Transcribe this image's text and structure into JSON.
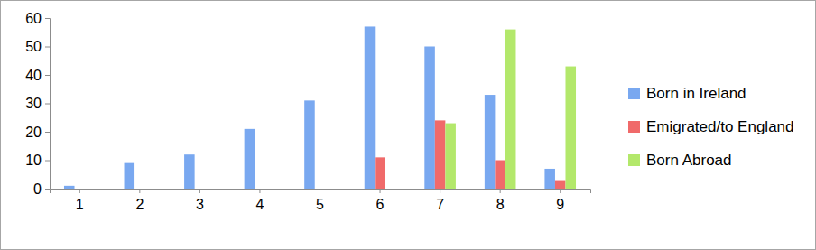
{
  "chart_data": {
    "type": "bar",
    "categories": [
      "1",
      "2",
      "3",
      "4",
      "5",
      "6",
      "7",
      "8",
      "9"
    ],
    "series": [
      {
        "name": "Born in Ireland",
        "color": "#79a8f0",
        "values": [
          1,
          9,
          12,
          21,
          31,
          57,
          50,
          33,
          7
        ]
      },
      {
        "name": "Emigrated/to England",
        "color": "#f06a6a",
        "values": [
          null,
          null,
          null,
          null,
          null,
          11,
          24,
          10,
          3
        ]
      },
      {
        "name": "Born Abroad",
        "color": "#b3e86b",
        "values": [
          null,
          null,
          null,
          null,
          null,
          null,
          23,
          56,
          43
        ]
      }
    ],
    "ylim": [
      0,
      60
    ],
    "yticks": [
      0,
      10,
      20,
      30,
      40,
      50,
      60
    ],
    "grid": false,
    "legend": "right"
  }
}
